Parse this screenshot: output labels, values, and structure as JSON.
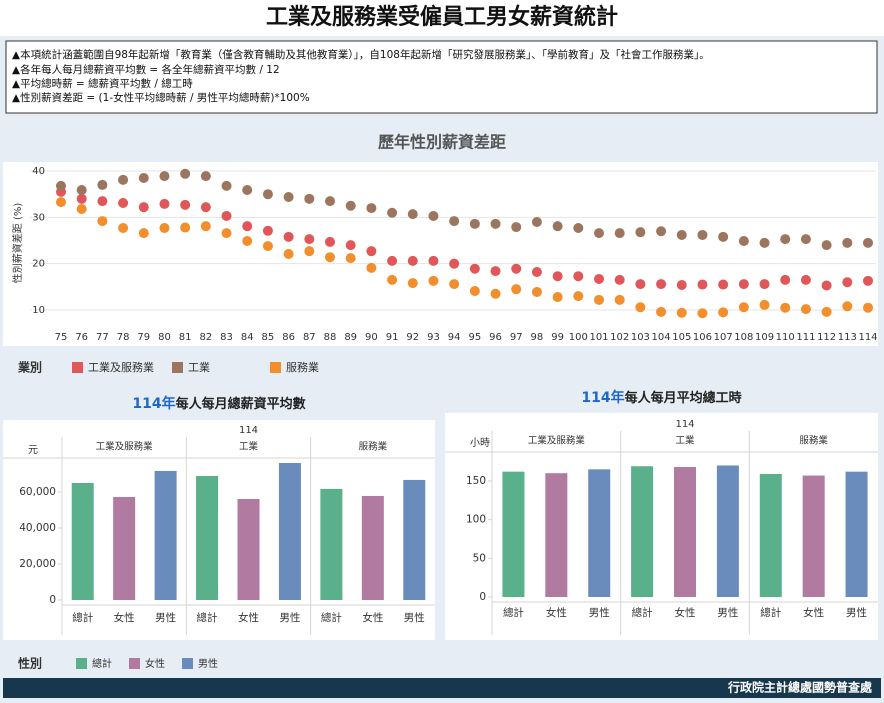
{
  "header": {
    "title": "工業及服務業受僱員工男女薪資統計"
  },
  "notes": [
    "▲本項統計涵蓋範圍自98年起新增「教育業（僅含教育輔助及其他教育業）」，自108年起新增「研究發展服務業」、「學前教育」及「社會工作服務業」。",
    "▲各年每人每月總薪資平均數 = 各全年總薪資平均數 / 12",
    "▲平均總時薪 = 總薪資平均數 / 總工時",
    "▲性別薪資差距 = (1-女性平均總時薪 / 男性平均總時薪)*100%"
  ],
  "chart_data": [
    {
      "type": "scatter",
      "title": "歷年性別薪資差距",
      "y_label": "性別薪資差距 (%)",
      "legend_title": "業別",
      "categories": [
        "75",
        "76",
        "77",
        "78",
        "79",
        "80",
        "81",
        "82",
        "83",
        "84",
        "85",
        "86",
        "87",
        "88",
        "89",
        "90",
        "91",
        "92",
        "93",
        "94",
        "95",
        "96",
        "97",
        "98",
        "99",
        "100",
        "101",
        "102",
        "103",
        "104",
        "105",
        "106",
        "107",
        "108",
        "109",
        "110",
        "111",
        "112",
        "113",
        "114"
      ],
      "ylim": [
        4,
        41
      ],
      "yticks": [
        10,
        20,
        30,
        40
      ],
      "grid": true,
      "series": [
        {
          "name": "工業及服務業",
          "color": "#e15759",
          "values": [
            35.5,
            34,
            33.5,
            33.1,
            32.2,
            32.9,
            32.7,
            32.2,
            30.3,
            28.1,
            27.1,
            25.8,
            25.3,
            24.7,
            24,
            22.7,
            20.6,
            20.6,
            20.6,
            20,
            18.9,
            18.4,
            18.9,
            18.2,
            17.3,
            17.3,
            16.7,
            16.5,
            15.6,
            15.6,
            15.4,
            15.5,
            15.5,
            15.6,
            15.6,
            16.5,
            16.5,
            15.3,
            16,
            16.3
          ]
        },
        {
          "name": "工業",
          "color": "#9c755f",
          "values": [
            36.8,
            35.9,
            37,
            38.1,
            38.5,
            38.9,
            39.4,
            38.9,
            36.8,
            35.9,
            35,
            34.4,
            34,
            33.5,
            32.5,
            32,
            31,
            30.7,
            30.3,
            29.2,
            28.6,
            28.6,
            27.9,
            29,
            28.1,
            27.7,
            26.6,
            26.6,
            26.8,
            27,
            26.2,
            26.2,
            25.8,
            24.9,
            24.5,
            25.3,
            25.3,
            24,
            24.5,
            24.5
          ]
        },
        {
          "name": "服務業",
          "color": "#f28e2b",
          "values": [
            33.3,
            31.8,
            29.2,
            27.7,
            26.6,
            27.7,
            27.8,
            28.1,
            26.6,
            24.9,
            23.8,
            22.1,
            22.7,
            21.4,
            21.2,
            19.1,
            16.5,
            15.8,
            16.3,
            15.6,
            14.1,
            13.5,
            14.5,
            13.9,
            12.8,
            13,
            12.2,
            12.2,
            10.6,
            9.6,
            9.4,
            9.3,
            9.5,
            10.6,
            11.1,
            10.5,
            10.2,
            9.6,
            10.8,
            10.5
          ]
        }
      ]
    },
    {
      "type": "bar",
      "title_year": "114年",
      "title": "每人每月總薪資平均數",
      "header": "114",
      "unit": "元",
      "legend_title": "性別",
      "categories": [
        "工業及服務業",
        "工業",
        "服務業"
      ],
      "ylim": [
        0,
        80000
      ],
      "yticks": [
        0,
        {
          "value": 20000,
          "label": "20,000"
        },
        {
          "value": 40000,
          "label": "40,000"
        },
        {
          "value": 60000,
          "label": "60,000"
        }
      ],
      "series": [
        {
          "name": "總計",
          "color": "#59b08a",
          "values": [
            65000,
            68900,
            61700
          ]
        },
        {
          "name": "女性",
          "color": "#b07aa1",
          "values": [
            57200,
            56100,
            57800
          ]
        },
        {
          "name": "男性",
          "color": "#6a8cbd",
          "values": [
            71700,
            76100,
            66700
          ]
        }
      ]
    },
    {
      "type": "bar",
      "title_year": "114年",
      "title": "每人每月平均總工時",
      "header": "114",
      "unit": "小時",
      "categories": [
        "工業及服務業",
        "工業",
        "服務業"
      ],
      "ylim": [
        0,
        190
      ],
      "yticks": [
        0,
        50,
        100,
        150
      ],
      "series": [
        {
          "name": "總計",
          "color": "#59b08a",
          "values": [
            162,
            169,
            159
          ]
        },
        {
          "name": "女性",
          "color": "#b07aa1",
          "values": [
            160,
            168,
            157
          ]
        },
        {
          "name": "男性",
          "color": "#6a8cbd",
          "values": [
            165,
            170,
            162
          ]
        }
      ]
    }
  ],
  "footer": "行政院主計總處國勢普查處"
}
